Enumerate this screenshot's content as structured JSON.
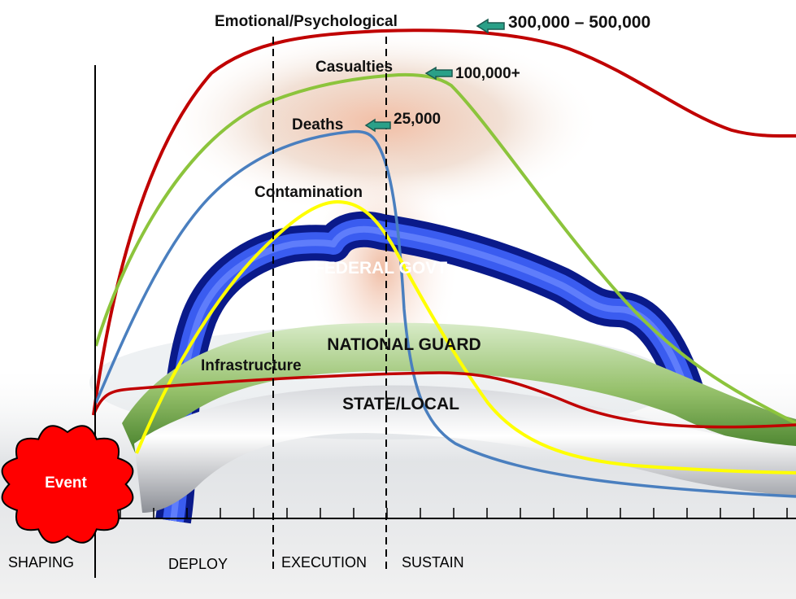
{
  "curves": {
    "emotional": {
      "label": "Emotional/Psychological",
      "value": "300,000 – 500,000",
      "color": "#c00000"
    },
    "casualties": {
      "label": "Casualties",
      "value": "100,000+",
      "color": "#8cc43c"
    },
    "deaths": {
      "label": "Deaths",
      "value": "25,000",
      "color": "#4a7fbf"
    },
    "contamination": {
      "label": "Contamination",
      "color": "#ffff00"
    },
    "infrastructure": {
      "label": "Infrastructure",
      "color": "#c00000"
    }
  },
  "bands": {
    "federal": {
      "label": "FEDERAL GOVT",
      "color": "#1f3fd0"
    },
    "guard": {
      "label": "NATIONAL GUARD",
      "color": "#7aaa4a"
    },
    "state": {
      "label": "STATE/LOCAL",
      "color": "#b8bac0"
    }
  },
  "event": {
    "label": "Event",
    "color": "#ff0000"
  },
  "phases": [
    "SHAPING",
    "DEPLOY",
    "EXECUTION",
    "SUSTAIN"
  ],
  "arrow_color": "#2aa088"
}
